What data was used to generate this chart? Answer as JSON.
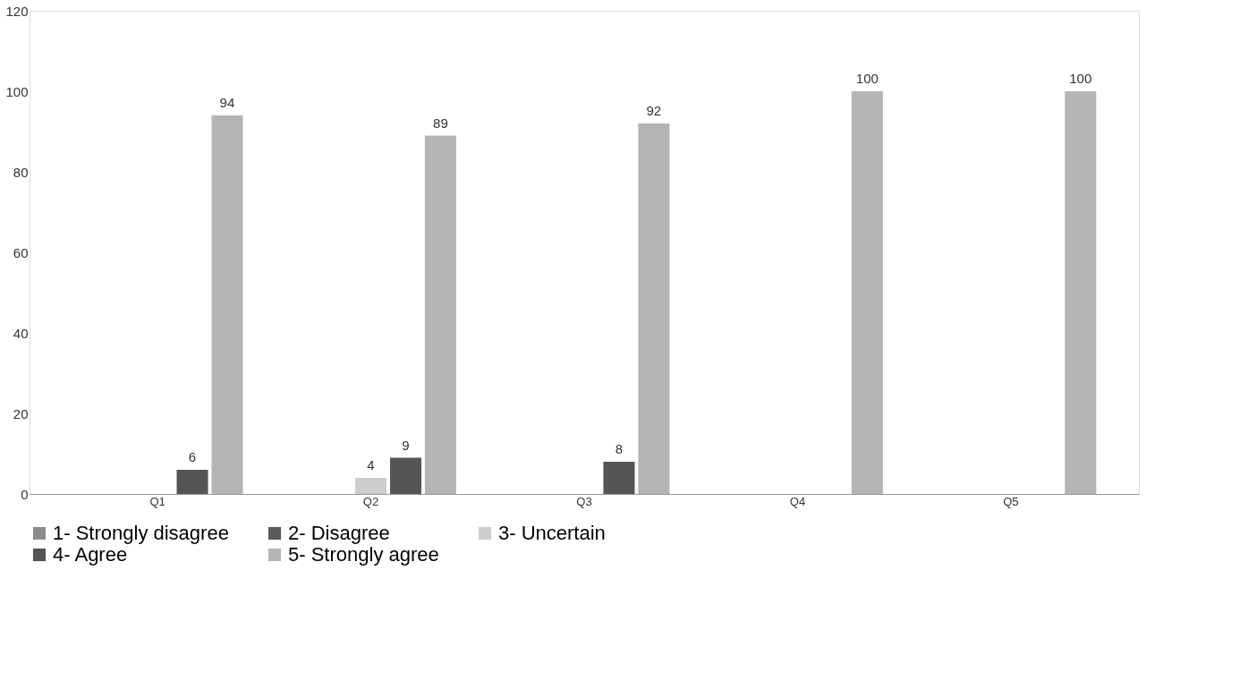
{
  "chart_data": {
    "type": "bar",
    "categories": [
      "Q1",
      "Q2",
      "Q3",
      "Q4",
      "Q5"
    ],
    "series": [
      {
        "name": "1- Strongly disagree",
        "color": "#8c8c8c",
        "values": [
          0,
          0,
          0,
          0,
          0
        ],
        "value_labels": [
          null,
          null,
          null,
          null,
          null
        ]
      },
      {
        "name": "2- Disagree",
        "color": "#5a5a5a",
        "values": [
          0,
          0,
          0,
          0,
          0
        ],
        "value_labels": [
          null,
          null,
          null,
          null,
          null
        ]
      },
      {
        "name": "3- Uncertain",
        "color": "#cdcdcd",
        "values": [
          0,
          4,
          0,
          0,
          0
        ],
        "value_labels": [
          null,
          "4",
          null,
          null,
          null
        ]
      },
      {
        "name": "4- Agree",
        "color": "#555555",
        "values": [
          6,
          9,
          8,
          0,
          0
        ],
        "value_labels": [
          "6",
          "9",
          "8",
          null,
          null
        ]
      },
      {
        "name": "5- Strongly agree",
        "color": "#b4b4b4",
        "values": [
          94,
          89,
          92,
          100,
          100
        ],
        "value_labels": [
          "94",
          "89",
          "92",
          "100",
          "100"
        ]
      }
    ],
    "ylim": [
      0,
      120
    ],
    "yticks": [
      0,
      20,
      40,
      60,
      80,
      100,
      120
    ],
    "grid": false,
    "legend": "bottom"
  }
}
